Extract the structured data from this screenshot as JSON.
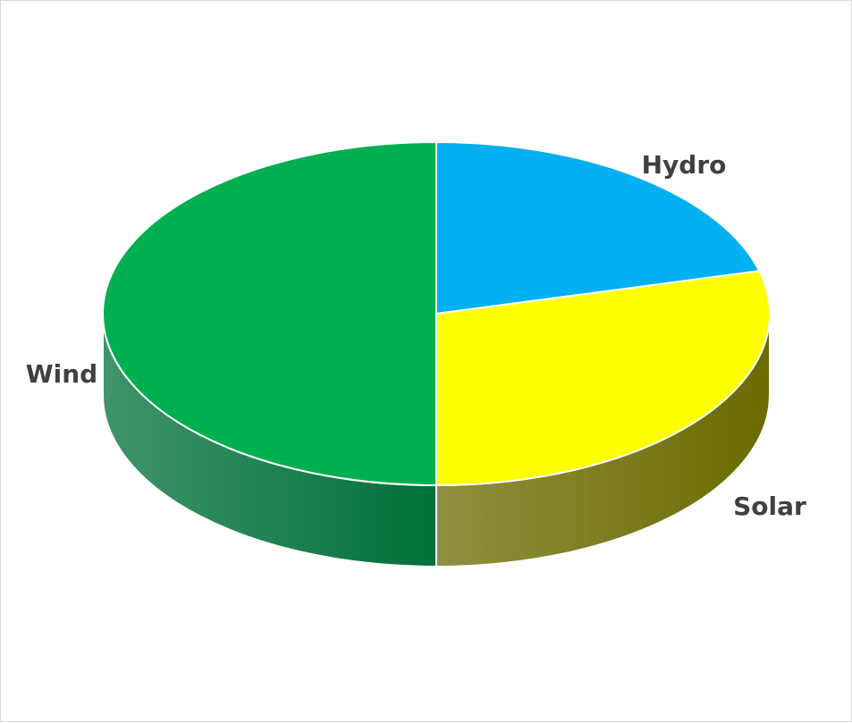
{
  "chart_data": {
    "type": "pie",
    "style": "3d",
    "title": "",
    "labels": [
      "Hydro",
      "Solar",
      "Wind"
    ],
    "values": [
      21,
      29,
      50
    ],
    "colors": [
      "#00b0f0",
      "#ffff00",
      "#00b050"
    ],
    "side_colors": [
      "#00709a",
      "#6b6b00",
      "#00703a"
    ],
    "legend": "none",
    "data_labels": "category names"
  }
}
